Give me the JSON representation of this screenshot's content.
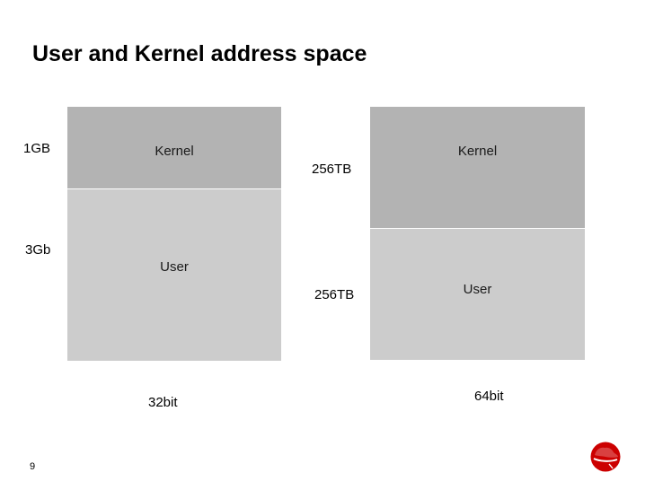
{
  "slide": {
    "title": "User and Kernel address space",
    "page_number": "9"
  },
  "diagram": {
    "left": {
      "kernel_label": "Kernel",
      "user_label": "User",
      "kernel_size": "1GB",
      "user_size": "3Gb",
      "arch": "32bit"
    },
    "right": {
      "kernel_label": "Kernel",
      "user_label": "User",
      "kernel_size": "256TB",
      "user_size": "256TB",
      "arch": "64bit"
    },
    "colors": {
      "kernel": "#b3b3b3",
      "user": "#cccccc",
      "logo": "#cc0000"
    }
  },
  "logo": {
    "icon": "red-hat-logo-icon"
  }
}
